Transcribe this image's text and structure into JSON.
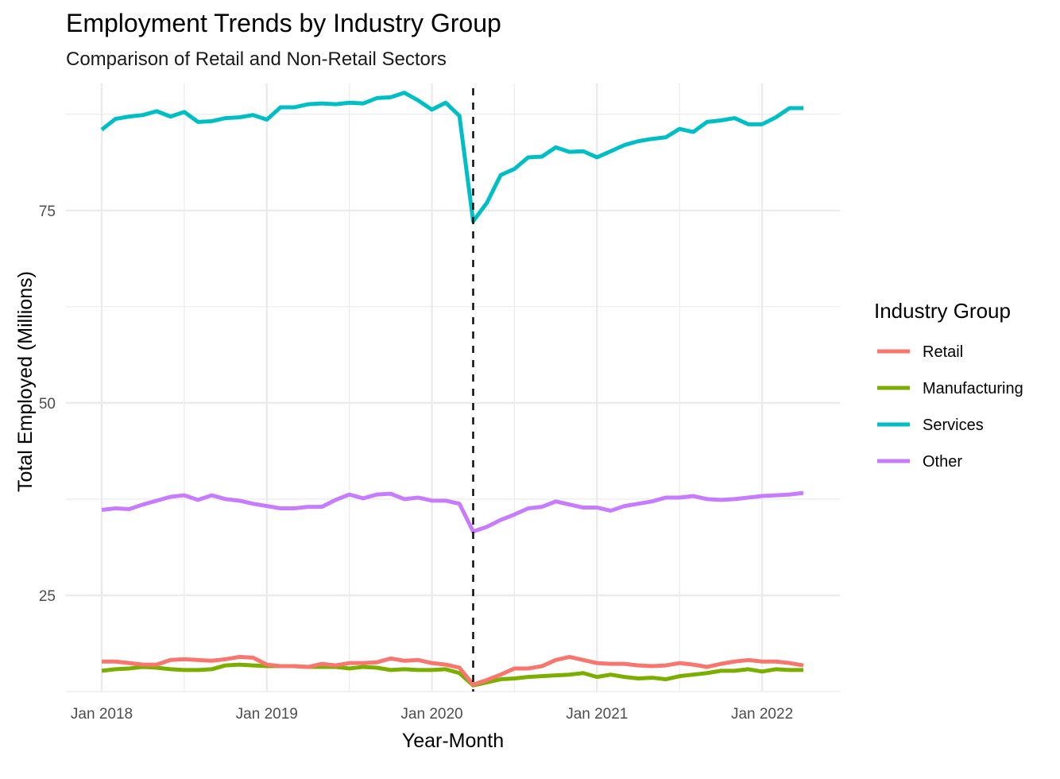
{
  "chart_data": {
    "type": "line",
    "title": "Employment Trends by Industry Group",
    "subtitle": "Comparison of Retail and Non-Retail Sectors",
    "xlabel": "Year-Month",
    "ylabel": "Total Employed (Millions)",
    "x_ticks": [
      "Jan 2018",
      "Jan 2019",
      "Jan 2020",
      "Jan 2021",
      "Jan 2022"
    ],
    "y_ticks": [
      25,
      50,
      75
    ],
    "ylim": [
      12.5,
      91.5
    ],
    "x_months": [
      "2018-01",
      "2018-02",
      "2018-03",
      "2018-04",
      "2018-05",
      "2018-06",
      "2018-07",
      "2018-08",
      "2018-09",
      "2018-10",
      "2018-11",
      "2018-12",
      "2019-01",
      "2019-02",
      "2019-03",
      "2019-04",
      "2019-05",
      "2019-06",
      "2019-07",
      "2019-08",
      "2019-09",
      "2019-10",
      "2019-11",
      "2019-12",
      "2020-01",
      "2020-02",
      "2020-03",
      "2020-04",
      "2020-05",
      "2020-06",
      "2020-07",
      "2020-08",
      "2020-09",
      "2020-10",
      "2020-11",
      "2020-12",
      "2021-01",
      "2021-02",
      "2021-03",
      "2021-04",
      "2021-05",
      "2021-06",
      "2021-07",
      "2021-08",
      "2021-09",
      "2021-10",
      "2021-11",
      "2021-12",
      "2022-01",
      "2022-02",
      "2022-03",
      "2022-04"
    ],
    "vline": {
      "x": "2020-04",
      "style": "dashed"
    },
    "grid": true,
    "legend": {
      "title": "Industry Group",
      "position": "right"
    },
    "series": [
      {
        "name": "Retail",
        "color": "#F8766D",
        "values": [
          16.4,
          16.4,
          16.2,
          16.0,
          16.0,
          16.6,
          16.7,
          16.6,
          16.5,
          16.7,
          17.0,
          16.9,
          16.0,
          15.8,
          15.8,
          15.7,
          16.1,
          15.9,
          16.2,
          16.2,
          16.3,
          16.8,
          16.5,
          16.6,
          16.2,
          16.0,
          15.6,
          13.4,
          14.0,
          14.7,
          15.5,
          15.5,
          15.8,
          16.6,
          17.0,
          16.6,
          16.2,
          16.1,
          16.1,
          15.9,
          15.8,
          15.9,
          16.2,
          16.0,
          15.7,
          16.1,
          16.4,
          16.6,
          16.4,
          16.4,
          16.2,
          15.9
        ]
      },
      {
        "name": "Manufacturing",
        "color": "#7CAE00",
        "values": [
          15.2,
          15.4,
          15.5,
          15.7,
          15.6,
          15.4,
          15.3,
          15.3,
          15.4,
          15.9,
          16.0,
          15.9,
          15.8,
          15.8,
          15.8,
          15.7,
          15.7,
          15.7,
          15.5,
          15.7,
          15.6,
          15.3,
          15.4,
          15.3,
          15.3,
          15.4,
          14.9,
          13.3,
          13.7,
          14.1,
          14.2,
          14.4,
          14.5,
          14.6,
          14.7,
          14.9,
          14.4,
          14.7,
          14.4,
          14.2,
          14.3,
          14.1,
          14.5,
          14.7,
          14.9,
          15.2,
          15.2,
          15.4,
          15.1,
          15.4,
          15.3,
          15.3
        ]
      },
      {
        "name": "Services",
        "color": "#00BFC4",
        "values": [
          85.5,
          86.9,
          87.2,
          87.4,
          87.9,
          87.2,
          87.8,
          86.5,
          86.6,
          87.0,
          87.1,
          87.4,
          86.8,
          88.4,
          88.4,
          88.8,
          88.9,
          88.8,
          89.0,
          88.9,
          89.6,
          89.7,
          90.3,
          89.3,
          88.1,
          89.0,
          87.3,
          73.6,
          76.0,
          79.6,
          80.4,
          81.9,
          82.0,
          83.2,
          82.6,
          82.7,
          81.9,
          82.7,
          83.5,
          84.0,
          84.3,
          84.5,
          85.6,
          85.2,
          86.5,
          86.7,
          87.0,
          86.2,
          86.2,
          87.1,
          88.3,
          88.3
        ]
      },
      {
        "name": "Other",
        "color": "#C77CFF",
        "values": [
          36.1,
          36.3,
          36.2,
          36.8,
          37.3,
          37.8,
          38.0,
          37.4,
          38.0,
          37.5,
          37.3,
          36.9,
          36.6,
          36.3,
          36.3,
          36.5,
          36.5,
          37.4,
          38.1,
          37.6,
          38.1,
          38.2,
          37.5,
          37.7,
          37.3,
          37.3,
          36.9,
          33.3,
          33.9,
          34.8,
          35.5,
          36.3,
          36.5,
          37.2,
          36.8,
          36.4,
          36.4,
          36.0,
          36.6,
          36.9,
          37.2,
          37.7,
          37.7,
          37.9,
          37.5,
          37.4,
          37.5,
          37.7,
          37.9,
          38.0,
          38.1,
          38.3
        ]
      }
    ]
  }
}
